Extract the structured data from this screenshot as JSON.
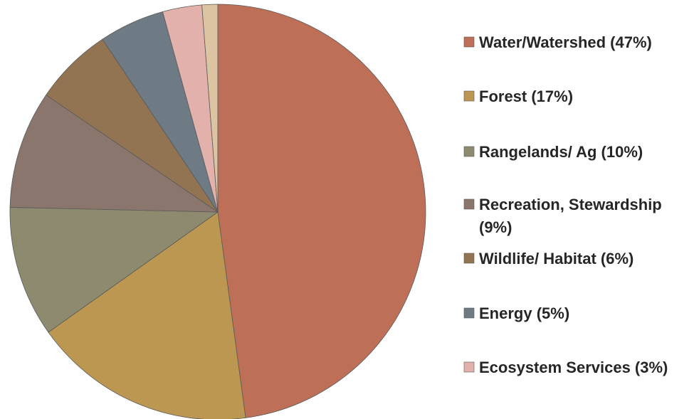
{
  "chart_data": {
    "type": "pie",
    "title": "",
    "start": "12 o'clock, clockwise",
    "legend_position": "right",
    "slices": [
      {
        "label": "Water/Watershed (47%)",
        "value": 47,
        "color": "#bd6f57"
      },
      {
        "label": "Forest (17%)",
        "value": 17,
        "color": "#bb9752"
      },
      {
        "label": "Rangelands/ Ag (10%)",
        "value": 10,
        "color": "#8e8a70"
      },
      {
        "label": "Recreation, Stewardship (9%)",
        "value": 9,
        "color": "#8a766c"
      },
      {
        "label": "Wildlife/ Habitat (6%)",
        "value": 6,
        "color": "#927453"
      },
      {
        "label": "Energy (5%)",
        "value": 5,
        "color": "#6e7a84"
      },
      {
        "label": "Ecosystem Services (3%)",
        "value": 3,
        "color": "#e2b1ab"
      },
      {
        "label": "",
        "value": 1.2,
        "color": "#dcc3a1"
      }
    ]
  }
}
